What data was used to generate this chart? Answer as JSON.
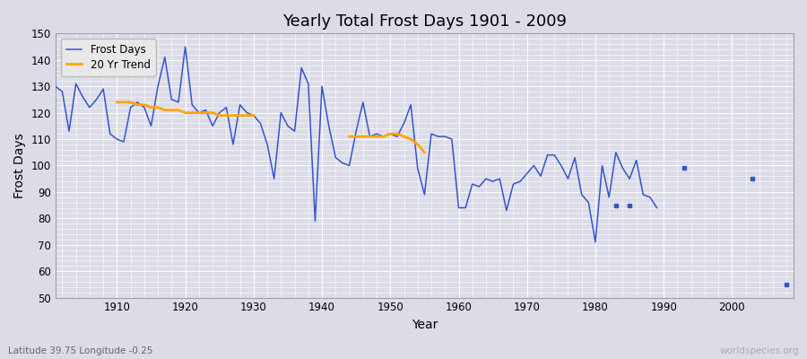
{
  "title": "Yearly Total Frost Days 1901 - 2009",
  "xlabel": "Year",
  "ylabel": "Frost Days",
  "subtitle": "Latitude 39.75 Longitude -0.25",
  "watermark": "worldspecies.org",
  "ylim": [
    50,
    150
  ],
  "xlim": [
    1901,
    2009
  ],
  "yticks": [
    50,
    60,
    70,
    80,
    90,
    100,
    110,
    120,
    130,
    140,
    150
  ],
  "xticks": [
    1910,
    1920,
    1930,
    1940,
    1950,
    1960,
    1970,
    1980,
    1990,
    2000
  ],
  "connected_years": [
    1901,
    1902,
    1903,
    1904,
    1905,
    1906,
    1907,
    1908,
    1909,
    1910,
    1911,
    1912,
    1913,
    1914,
    1915,
    1916,
    1917,
    1918,
    1919,
    1920,
    1921,
    1922,
    1923,
    1924,
    1925,
    1926,
    1927,
    1928,
    1929,
    1930,
    1931,
    1932,
    1933,
    1934,
    1935,
    1936,
    1937,
    1938,
    1939,
    1940,
    1941,
    1942,
    1943,
    1944,
    1945,
    1946,
    1947,
    1948,
    1949,
    1950,
    1951,
    1952,
    1953,
    1954,
    1955,
    1956,
    1957,
    1958,
    1959,
    1960,
    1961,
    1962,
    1963,
    1964,
    1965,
    1966,
    1967,
    1968,
    1969,
    1970,
    1971,
    1972,
    1973,
    1974,
    1975,
    1976,
    1977,
    1978,
    1979,
    1980,
    1981,
    1982,
    1983,
    1984,
    1985,
    1986,
    1987,
    1988,
    1989
  ],
  "connected_values": [
    130,
    128,
    113,
    131,
    126,
    122,
    125,
    129,
    112,
    110,
    109,
    122,
    124,
    122,
    115,
    130,
    141,
    125,
    124,
    145,
    123,
    120,
    121,
    115,
    120,
    122,
    108,
    123,
    120,
    119,
    116,
    108,
    95,
    120,
    115,
    113,
    137,
    131,
    79,
    130,
    115,
    103,
    101,
    100,
    113,
    124,
    111,
    112,
    111,
    112,
    111,
    116,
    123,
    99,
    89,
    112,
    111,
    111,
    110,
    84,
    84,
    93,
    92,
    95,
    94,
    95,
    83,
    93,
    94,
    97,
    100,
    96,
    104,
    104,
    100,
    95,
    103,
    89,
    86,
    71,
    100,
    88,
    105,
    99,
    95,
    102,
    89,
    88,
    84
  ],
  "isolated_points": [
    {
      "year": 1983,
      "value": 85
    },
    {
      "year": 1985,
      "value": 85
    },
    {
      "year": 1993,
      "value": 99
    },
    {
      "year": 2003,
      "value": 95
    },
    {
      "year": 2008,
      "value": 55
    }
  ],
  "trend_years": [
    1910,
    1911,
    1912,
    1913,
    1914,
    1915,
    1916,
    1917,
    1918,
    1919,
    1920,
    1921,
    1922,
    1923,
    1924,
    1925,
    1926,
    1927,
    1928,
    1929,
    1930,
    1944,
    1945,
    1946,
    1947,
    1948,
    1949,
    1950,
    1951,
    1952,
    1953,
    1954,
    1955
  ],
  "trend_values": [
    124,
    124,
    124,
    123,
    123,
    122,
    122,
    121,
    121,
    121,
    120,
    120,
    120,
    120,
    120,
    119,
    119,
    119,
    119,
    119,
    119,
    111,
    111,
    111,
    111,
    111,
    111,
    112,
    112,
    111,
    110,
    108,
    105
  ],
  "line_color": "#3355cc",
  "trend_color": "#ffa500",
  "bg_color": "#dcdce8",
  "grid_color": "#ffffff",
  "legend_bg": "#e8e8e8"
}
